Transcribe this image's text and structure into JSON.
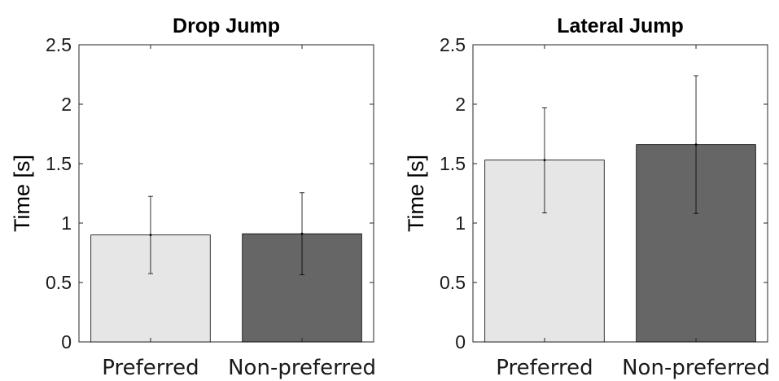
{
  "chart_data": [
    {
      "type": "bar",
      "title": "Drop Jump",
      "ylabel": "Time [s]",
      "xlabel": "",
      "categories": [
        "Preferred",
        "Non-preferred"
      ],
      "values": [
        0.9,
        0.91
      ],
      "error_low": [
        0.575,
        0.565
      ],
      "error_high": [
        1.225,
        1.255
      ],
      "bar_colors": [
        "#e6e6e6",
        "#666666"
      ],
      "ylim": [
        0,
        2.5
      ],
      "yticks": [
        0,
        0.5,
        1,
        1.5,
        2,
        2.5
      ],
      "ytick_labels": [
        "0",
        "0.5",
        "1",
        "1.5",
        "2",
        "2.5"
      ],
      "grid": false
    },
    {
      "type": "bar",
      "title": "Lateral Jump",
      "ylabel": "Time [s]",
      "xlabel": "",
      "categories": [
        "Preferred",
        "Non-preferred"
      ],
      "values": [
        1.53,
        1.66
      ],
      "error_low": [
        1.085,
        1.08
      ],
      "error_high": [
        1.97,
        2.24
      ],
      "bar_colors": [
        "#e6e6e6",
        "#666666"
      ],
      "ylim": [
        0,
        2.5
      ],
      "yticks": [
        0,
        0.5,
        1,
        1.5,
        2,
        2.5
      ],
      "ytick_labels": [
        "0",
        "0.5",
        "1",
        "1.5",
        "2",
        "2.5"
      ],
      "grid": false
    }
  ]
}
